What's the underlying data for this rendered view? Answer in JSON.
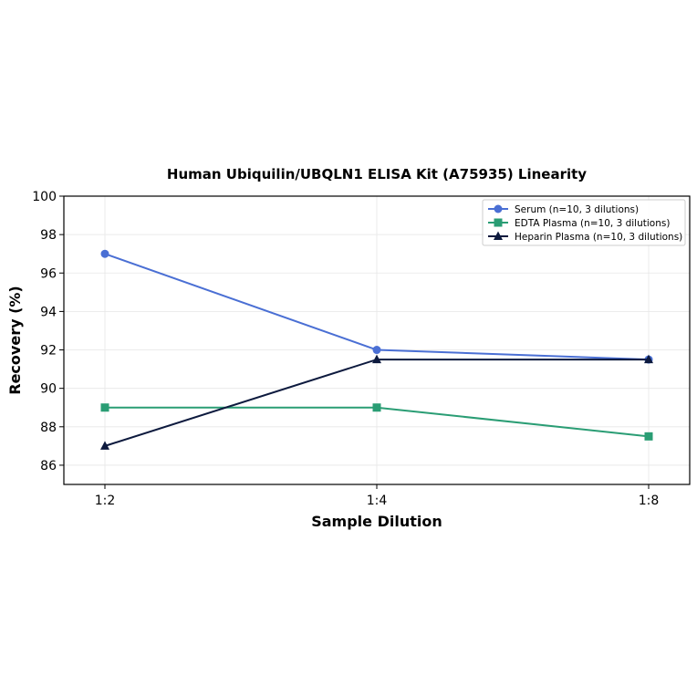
{
  "chart_data": {
    "type": "line",
    "title": "Human Ubiquilin/UBQLN1 ELISA Kit (A75935) Linearity",
    "xlabel": "Sample Dilution",
    "ylabel": "Recovery (%)",
    "categories": [
      "1:2",
      "1:4",
      "1:8"
    ],
    "ylim": [
      85,
      100
    ],
    "yticks": [
      86,
      88,
      90,
      92,
      94,
      96,
      98,
      100
    ],
    "grid": true,
    "legend_position": "top-right",
    "series": [
      {
        "name": "Serum (n=10, 3 dilutions)",
        "values": [
          97,
          92,
          91.5
        ],
        "color": "#4a6fd4",
        "marker": "circle"
      },
      {
        "name": "EDTA Plasma (n=10, 3 dilutions)",
        "values": [
          89,
          89,
          87.5
        ],
        "color": "#2a9d74",
        "marker": "square"
      },
      {
        "name": "Heparin Plasma (n=10, 3 dilutions)",
        "values": [
          87,
          91.5,
          91.5
        ],
        "color": "#0d1a3e",
        "marker": "triangle"
      }
    ]
  }
}
